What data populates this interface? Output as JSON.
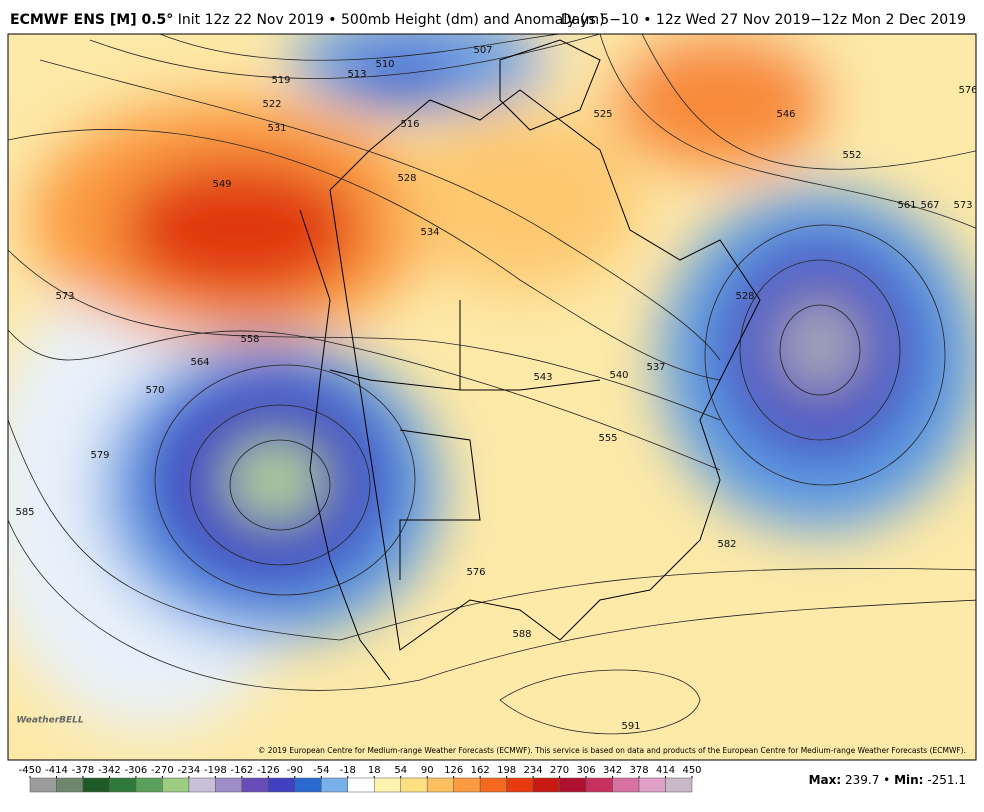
{
  "header": {
    "title_bold": "ECMWF ENS [M] 0.5°",
    "title_rest": "Init 12z 22 Nov 2019 • 500mb Height (dm) and Anomaly (m)",
    "valid": "Days 5−10 • 12z Wed 27 Nov 2019−12z Mon 2 Dec 2019"
  },
  "map": {
    "contour_labels": [
      "507",
      "510",
      "513",
      "516",
      "519",
      "522",
      "525",
      "528",
      "531",
      "534",
      "537",
      "540",
      "543",
      "546",
      "549",
      "552",
      "555",
      "558",
      "561",
      "564",
      "567",
      "570",
      "573",
      "573",
      "576",
      "576",
      "579",
      "582",
      "585",
      "588",
      "591",
      "528"
    ],
    "copyright": "© 2019 European Centre for Medium-range Weather Forecasts (ECMWF). This service is based on data and products of the European Centre for Medium-range Weather Forecasts (ECMWF).",
    "logo": "WeatherBELL"
  },
  "colorbar": {
    "ticks": [
      -450,
      -414,
      -378,
      -342,
      -306,
      -270,
      -234,
      -198,
      -162,
      -126,
      -90,
      -54,
      -18,
      18,
      54,
      90,
      126,
      162,
      198,
      234,
      270,
      306,
      342,
      378,
      414,
      450
    ],
    "colors": [
      "#9c9c9c",
      "#6e866e",
      "#1e5a28",
      "#2f7a3a",
      "#5aa05a",
      "#9ccc80",
      "#c8c0d8",
      "#9d8cc8",
      "#6a4cb8",
      "#4040c0",
      "#2a6ad0",
      "#7ab0ea",
      "#ffffff",
      "#fff3b0",
      "#ffe080",
      "#fdc060",
      "#fb9a40",
      "#f56a20",
      "#e83a10",
      "#c81a10",
      "#b01030",
      "#c83060",
      "#d870a0",
      "#e0a0c8",
      "#c8b8c8"
    ]
  },
  "stats": {
    "max_label": "Max:",
    "max": 239.7,
    "separator": "•",
    "min_label": "Min:",
    "min": -251.1
  }
}
